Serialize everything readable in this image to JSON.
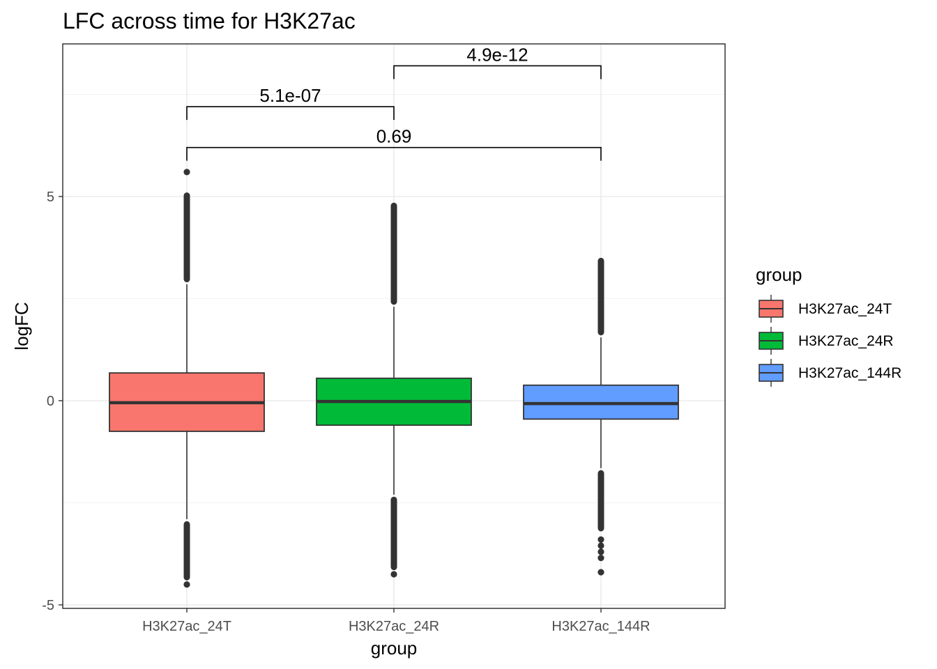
{
  "chart_data": {
    "type": "box",
    "title": "LFC across time for H3K27ac",
    "xlabel": "group",
    "ylabel": "logFC",
    "ylim": [
      -5.1,
      8.8
    ],
    "yticks": [
      -5,
      0,
      5
    ],
    "grid": true,
    "legend": {
      "title": "group",
      "placement": "right",
      "entries": [
        "H3K27ac_24T",
        "H3K27ac_24R",
        "H3K27ac_144R"
      ]
    },
    "categories": [
      "H3K27ac_24T",
      "H3K27ac_24R",
      "H3K27ac_144R"
    ],
    "colors": [
      "#F8766D",
      "#00BA38",
      "#619CFF"
    ],
    "boxes": [
      {
        "name": "H3K27ac_24T",
        "q1": -0.75,
        "median": -0.05,
        "q3": 0.68,
        "whisker_low": -2.9,
        "whisker_high": 2.85,
        "outlier_high_range": [
          2.9,
          5.1
        ],
        "outlier_low_range": [
          -4.4,
          -2.95
        ],
        "outliers_isolated": [
          5.6,
          -4.5
        ]
      },
      {
        "name": "H3K27ac_24R",
        "q1": -0.6,
        "median": -0.02,
        "q3": 0.55,
        "whisker_low": -2.3,
        "whisker_high": 2.3,
        "outlier_high_range": [
          2.35,
          4.85
        ],
        "outlier_low_range": [
          -4.15,
          -2.35
        ],
        "outliers_isolated": [
          -4.25
        ]
      },
      {
        "name": "H3K27ac_144R",
        "q1": -0.45,
        "median": -0.07,
        "q3": 0.38,
        "whisker_low": -1.65,
        "whisker_high": 1.55,
        "outlier_high_range": [
          1.6,
          3.5
        ],
        "outlier_low_range": [
          -3.2,
          -1.7
        ],
        "outliers_isolated": [
          -3.4,
          -3.55,
          -3.7,
          -3.85,
          -4.2
        ]
      }
    ],
    "comparisons": [
      {
        "from": 0,
        "to": 1,
        "label": "5.1e-07",
        "y": 7.2
      },
      {
        "from": 1,
        "to": 2,
        "label": "4.9e-12",
        "y": 8.2
      },
      {
        "from": 0,
        "to": 2,
        "label": "0.69",
        "y": 6.2
      }
    ]
  }
}
